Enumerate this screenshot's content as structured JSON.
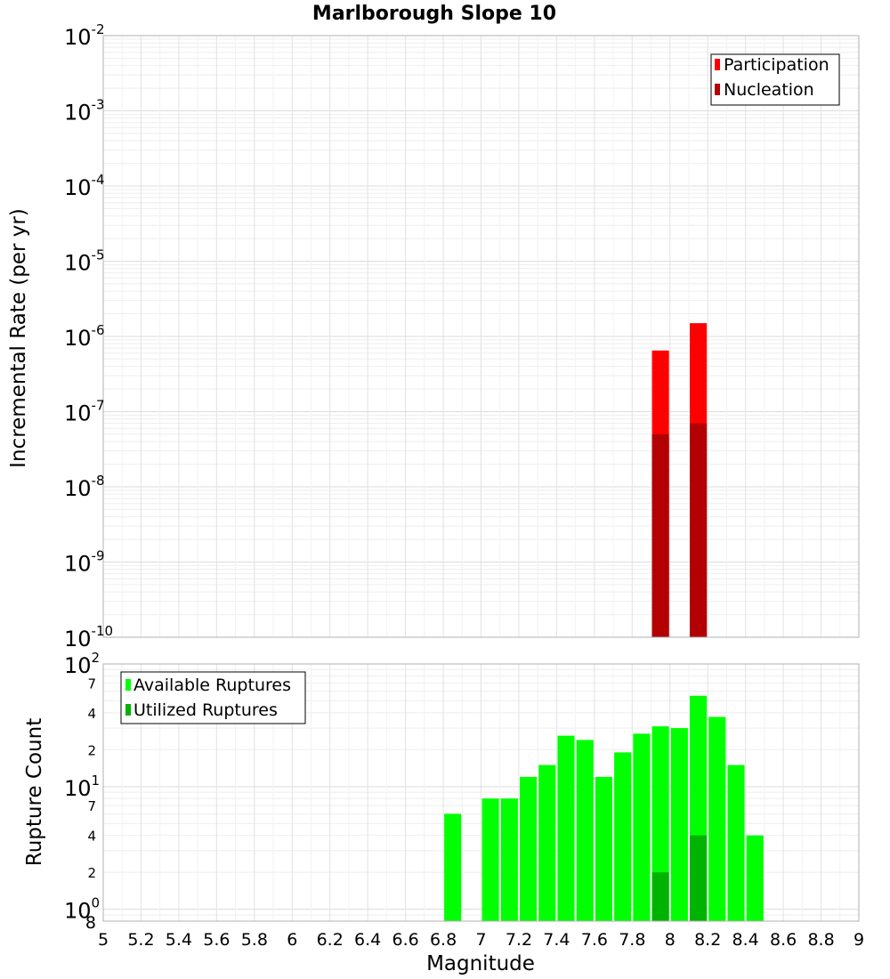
{
  "chart_data": [
    {
      "type": "bar",
      "title": "Marlborough Slope 10",
      "ylabel": "Incremental Rate (per yr)",
      "yscale": "log",
      "ylim": [
        1e-10,
        0.01
      ],
      "xlim": [
        5,
        9
      ],
      "grid": true,
      "legend": "top-right",
      "y_tick_bases": [
        "10",
        "10",
        "10",
        "10",
        "10",
        "10",
        "10",
        "10",
        "10"
      ],
      "y_tick_exponents": [
        "-2",
        "-3",
        "-4",
        "-5",
        "-6",
        "-7",
        "-8",
        "-9",
        "-10"
      ],
      "series": [
        {
          "name": "Participation",
          "color": "#ff0000",
          "x": [
            7.95,
            8.15
          ],
          "values": [
            6.5e-07,
            1.5e-06
          ]
        },
        {
          "name": "Nucleation",
          "color": "#b30000",
          "x": [
            7.95,
            8.15
          ],
          "values": [
            5e-08,
            7e-08
          ]
        }
      ]
    },
    {
      "type": "bar",
      "xlabel": "Magnitude",
      "ylabel": "Rupture Count",
      "yscale": "log",
      "ylim": [
        0.8,
        100
      ],
      "xlim": [
        5,
        9
      ],
      "grid": true,
      "legend": "top-left",
      "x_ticks": [
        "5",
        "5.2",
        "5.4",
        "5.6",
        "5.8",
        "6",
        "6.2",
        "6.4",
        "6.6",
        "6.8",
        "7",
        "7.2",
        "7.4",
        "7.6",
        "7.8",
        "8",
        "8.2",
        "8.4",
        "8.6",
        "8.8",
        "9"
      ],
      "y_major_ticks": [
        {
          "base": "10",
          "exp": "2"
        },
        {
          "base": "10",
          "exp": "1"
        },
        {
          "base": "10",
          "exp": "0"
        }
      ],
      "y_minor_labels": [
        "7",
        "4",
        "2",
        "7",
        "4",
        "2",
        "8"
      ],
      "series": [
        {
          "name": "Available Ruptures",
          "color": "#00ff00",
          "x": [
            6.85,
            7.05,
            7.15,
            7.25,
            7.35,
            7.45,
            7.55,
            7.65,
            7.75,
            7.85,
            7.95,
            8.05,
            8.15,
            8.25,
            8.35,
            8.45
          ],
          "values": [
            6,
            8,
            8,
            12,
            15,
            26,
            24,
            12,
            19,
            27,
            31,
            30,
            55,
            37,
            15,
            4
          ]
        },
        {
          "name": "Utilized Ruptures",
          "color": "#00b300",
          "x": [
            7.95,
            8.15
          ],
          "values": [
            2,
            4
          ]
        }
      ]
    }
  ]
}
